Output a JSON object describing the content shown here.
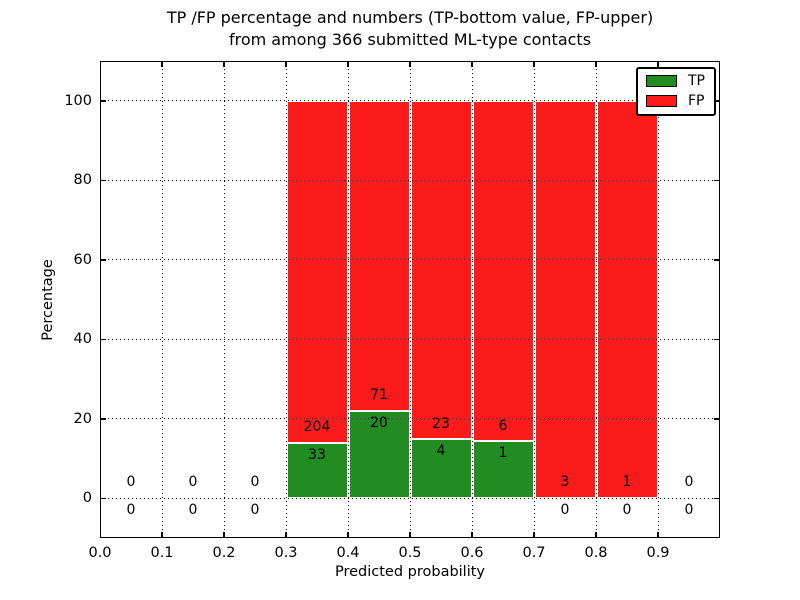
{
  "figure": {
    "title_line1": "TP /FP percentage and numbers (TP-bottom value, FP-upper)",
    "title_line2": "from among 366 submitted ML-type contacts",
    "xlabel": "Predicted probability",
    "ylabel": "Percentage"
  },
  "legend": {
    "items": [
      {
        "label": "TP",
        "color": "#228b22"
      },
      {
        "label": "FP",
        "color": "#fc1b1b"
      }
    ]
  },
  "colors": {
    "tp": "#228b22",
    "fp": "#fc1b1b",
    "grid": "#000000",
    "frame": "#000000",
    "background": "#ffffff",
    "bar_edge": "#ffffff"
  },
  "chart_data": {
    "type": "bar",
    "stacked": true,
    "title": "TP /FP percentage and numbers (TP-bottom value, FP-upper) from among 366 submitted ML-type contacts",
    "xlabel": "Predicted probability",
    "ylabel": "Percentage",
    "xlim": [
      0.0,
      1.0
    ],
    "ylim": [
      -10,
      110
    ],
    "grid": "dotted",
    "legend_position": "upper right",
    "total_contacts": 366,
    "x_tick_labels": [
      "0.0",
      "0.1",
      "0.2",
      "0.3",
      "0.4",
      "0.5",
      "0.6",
      "0.7",
      "0.8",
      "0.9"
    ],
    "y_tick_labels": [
      "0",
      "20",
      "40",
      "60",
      "80",
      "100"
    ],
    "series": [
      {
        "name": "TP",
        "values_pct": [
          0,
          0,
          0,
          13.9,
          22.0,
          14.8,
          14.3,
          0,
          0,
          0
        ]
      },
      {
        "name": "FP",
        "values_pct": [
          0,
          0,
          0,
          86.1,
          78.0,
          85.2,
          85.7,
          100,
          100,
          0
        ]
      }
    ],
    "bins": [
      {
        "x_start": 0.0,
        "x_end": 0.1,
        "tp_count": 0,
        "fp_count": 0,
        "tp_pct": 0,
        "fp_pct": 0,
        "has_bar": false
      },
      {
        "x_start": 0.1,
        "x_end": 0.2,
        "tp_count": 0,
        "fp_count": 0,
        "tp_pct": 0,
        "fp_pct": 0,
        "has_bar": false
      },
      {
        "x_start": 0.2,
        "x_end": 0.3,
        "tp_count": 0,
        "fp_count": 0,
        "tp_pct": 0,
        "fp_pct": 0,
        "has_bar": false
      },
      {
        "x_start": 0.3,
        "x_end": 0.4,
        "tp_count": 33,
        "fp_count": 204,
        "tp_pct": 13.9,
        "fp_pct": 86.1,
        "has_bar": true
      },
      {
        "x_start": 0.4,
        "x_end": 0.5,
        "tp_count": 20,
        "fp_count": 71,
        "tp_pct": 22.0,
        "fp_pct": 78.0,
        "has_bar": true
      },
      {
        "x_start": 0.5,
        "x_end": 0.6,
        "tp_count": 4,
        "fp_count": 23,
        "tp_pct": 14.8,
        "fp_pct": 85.2,
        "has_bar": true
      },
      {
        "x_start": 0.6,
        "x_end": 0.7,
        "tp_count": 1,
        "fp_count": 6,
        "tp_pct": 14.3,
        "fp_pct": 85.7,
        "has_bar": true
      },
      {
        "x_start": 0.7,
        "x_end": 0.8,
        "tp_count": 0,
        "fp_count": 3,
        "tp_pct": 0,
        "fp_pct": 100,
        "has_bar": true
      },
      {
        "x_start": 0.8,
        "x_end": 0.9,
        "tp_count": 0,
        "fp_count": 1,
        "tp_pct": 0,
        "fp_pct": 100,
        "has_bar": true
      },
      {
        "x_start": 0.9,
        "x_end": 1.0,
        "tp_count": 0,
        "fp_count": 0,
        "tp_pct": 0,
        "fp_pct": 0,
        "has_bar": false
      }
    ]
  }
}
